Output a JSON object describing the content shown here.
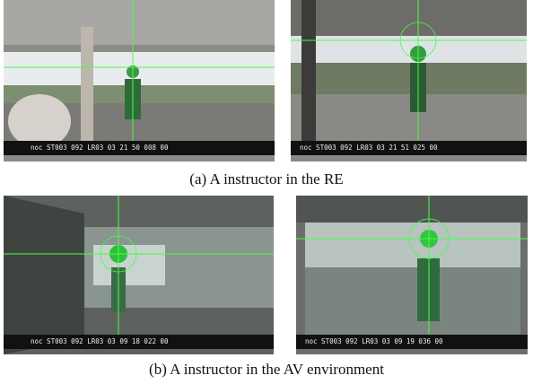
{
  "figure": {
    "rows": [
      {
        "images": [
          {
            "overlay": "noc ST003 092 LR03 03 21 50 008 00"
          },
          {
            "overlay": "noc ST003 092 LR03 03 21 51 025 00"
          }
        ],
        "caption": "(a) A instructor in the RE"
      },
      {
        "images": [
          {
            "overlay": "noc ST003 092 LR03 03 09 18 022 00"
          },
          {
            "overlay": "noc ST003 092 LR03 03 09 19 036 00"
          }
        ],
        "caption": "(b) A instructor in the AV environment"
      }
    ]
  }
}
